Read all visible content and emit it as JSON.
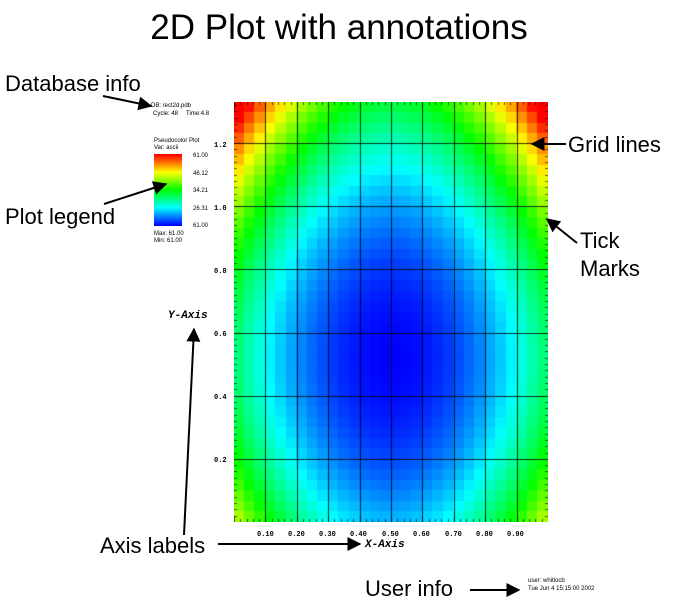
{
  "title": "2D Plot with annotations",
  "callouts": {
    "database_info": "Database info",
    "plot_legend": "Plot legend",
    "grid_lines": "Grid lines",
    "tick_marks_line1": "Tick",
    "tick_marks_line2": "Marks",
    "axis_labels": "Axis labels",
    "user_info": "User info"
  },
  "database": {
    "line1": "DB: rect2d.pdb",
    "cycle": "Cycle: 48",
    "time": "Time:4.8"
  },
  "legend": {
    "title": "Pseudocolor Plot",
    "var": "Var: ascii",
    "ticks": [
      "61.00",
      "46.12",
      "34.21",
      "26.31",
      "61.00"
    ],
    "max": "Max: 61.00",
    "min": "Min: 61.00",
    "colors": [
      "#ff0000",
      "#ffff00",
      "#00ff00",
      "#00ffff",
      "#0000ff"
    ]
  },
  "plot": {
    "x_axis_title": "X-Axis",
    "y_axis_title": "Y-Axis",
    "x_ticks": [
      "0.10",
      "0.20",
      "0.30",
      "0.40",
      "0.50",
      "0.60",
      "0.70",
      "0.80",
      "0.90"
    ],
    "y_ticks": [
      "0.2",
      "0.4",
      "0.6",
      "0.8",
      "1.0",
      "1.2"
    ],
    "x_range": [
      0,
      1
    ],
    "y_range": [
      0,
      1.33
    ],
    "grid": true,
    "colormap": "hot"
  },
  "user": {
    "line1": "user: whitlocb",
    "line2": "Tue Jun  4 15:15:00 2002"
  }
}
